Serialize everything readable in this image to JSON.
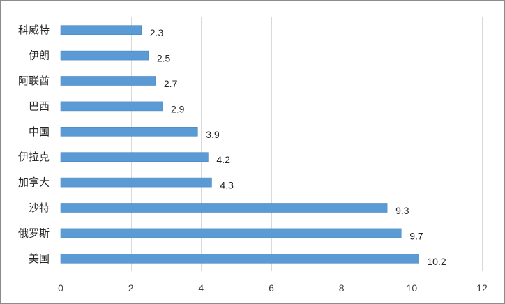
{
  "chart_data": {
    "type": "bar",
    "orientation": "horizontal",
    "categories": [
      "科威特",
      "伊朗",
      "阿联酋",
      "巴西",
      "中国",
      "伊拉克",
      "加拿大",
      "沙特",
      "俄罗斯",
      "美国"
    ],
    "values": [
      2.3,
      2.5,
      2.7,
      2.9,
      3.9,
      4.2,
      4.3,
      9.3,
      9.7,
      10.2
    ],
    "data_labels": [
      "2.3",
      "2.5",
      "2.7",
      "2.9",
      "3.9",
      "4.2",
      "4.3",
      "9.3",
      "9.7",
      "10.2"
    ],
    "xlim": [
      0,
      12
    ],
    "x_ticks": [
      0,
      2,
      4,
      6,
      8,
      10,
      12
    ],
    "x_tick_labels": [
      "0",
      "2",
      "4",
      "6",
      "8",
      "10",
      "12"
    ],
    "grid": "vertical",
    "legend": "none",
    "title": "",
    "xlabel": "",
    "ylabel": "",
    "colors": {
      "bar_fill": "#5b9bd5",
      "bar_stroke": "#4a86c0",
      "gridline": "#d9d9d9",
      "frame": "#8c8c8c"
    }
  }
}
